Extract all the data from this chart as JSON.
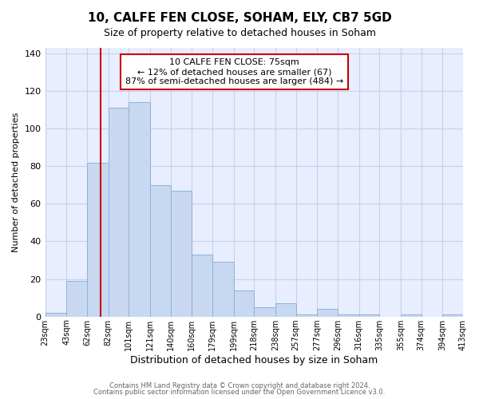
{
  "title": "10, CALFE FEN CLOSE, SOHAM, ELY, CB7 5GD",
  "subtitle": "Size of property relative to detached houses in Soham",
  "xlabel": "Distribution of detached houses by size in Soham",
  "ylabel": "Number of detached properties",
  "bin_edges": [
    23,
    43,
    62,
    82,
    101,
    121,
    140,
    160,
    179,
    199,
    218,
    238,
    257,
    277,
    296,
    316,
    335,
    355,
    374,
    394,
    413
  ],
  "bar_heights": [
    2,
    19,
    82,
    111,
    114,
    70,
    67,
    33,
    29,
    14,
    5,
    7,
    1,
    4,
    1,
    1,
    0,
    1,
    0,
    1
  ],
  "bar_color": "#c8d8f0",
  "bar_edge_color": "#8ab4d8",
  "vline_x": 75,
  "vline_color": "#cc0000",
  "annotation_text": "10 CALFE FEN CLOSE: 75sqm\n← 12% of detached houses are smaller (67)\n87% of semi-detached houses are larger (484) →",
  "annotation_box_facecolor": "#ffffff",
  "annotation_box_edgecolor": "#cc0000",
  "ylim": [
    0,
    143
  ],
  "yticks": [
    0,
    20,
    40,
    60,
    80,
    100,
    120,
    140
  ],
  "tick_labels": [
    "23sqm",
    "43sqm",
    "62sqm",
    "82sqm",
    "101sqm",
    "121sqm",
    "140sqm",
    "160sqm",
    "179sqm",
    "199sqm",
    "218sqm",
    "238sqm",
    "257sqm",
    "277sqm",
    "296sqm",
    "316sqm",
    "335sqm",
    "355sqm",
    "374sqm",
    "394sqm",
    "413sqm"
  ],
  "footer_line1": "Contains HM Land Registry data © Crown copyright and database right 2024.",
  "footer_line2": "Contains public sector information licensed under the Open Government Licence v3.0.",
  "plot_bg_color": "#e8eeff",
  "fig_bg_color": "#ffffff",
  "grid_color": "#c8d0e8",
  "title_fontsize": 11,
  "subtitle_fontsize": 9,
  "xlabel_fontsize": 9,
  "ylabel_fontsize": 8,
  "ytick_fontsize": 8,
  "xtick_fontsize": 7,
  "footer_fontsize": 6,
  "annotation_fontsize": 8
}
